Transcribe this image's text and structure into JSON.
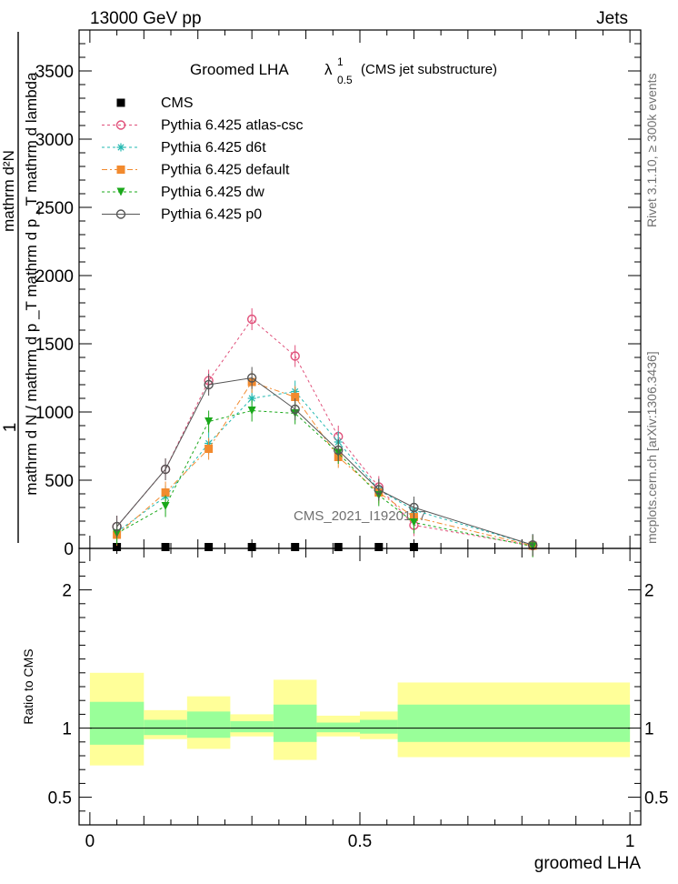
{
  "header": {
    "energy_label": "13000 GeV pp",
    "category_label": "Jets",
    "title": "Groomed LHA",
    "title_subscript": "0.5",
    "title_superscript": "1",
    "title_note": "(CMS jet substructure)",
    "rivet_label": "Rivet 3.1.10, ≥ 300k events",
    "mcplots_label": "mcplots.cern.ch [arXiv:1306.3436]",
    "watermark": "CMS_2021_I1920187"
  },
  "chart_data": [
    {
      "type": "line",
      "panel": "main",
      "xlabel": "groomed LHA",
      "ylabel_num": "1",
      "ylabel_den": "mathrm d N / mathrm d p _T mathrm d p _T mathrm d lambda",
      "ylabel_axis": "mathrm d²N",
      "xlim": [
        -0.02,
        1.02
      ],
      "ylim": [
        0,
        3800
      ],
      "yticks": [
        0,
        500,
        1000,
        1500,
        2000,
        2500,
        3000,
        3500
      ],
      "xticks": [
        0,
        0.5,
        1
      ],
      "legend_position": "top-left",
      "x": [
        0.05,
        0.14,
        0.22,
        0.3,
        0.38,
        0.46,
        0.535,
        0.6,
        0.82
      ],
      "series": [
        {
          "name": "CMS",
          "color": "#000000",
          "marker": "square",
          "line": "none",
          "values": [
            10,
            10,
            10,
            10,
            10,
            10,
            10,
            10,
            null
          ]
        },
        {
          "name": "Pythia 6.425 atlas-csc",
          "color": "#e0507a",
          "marker": "open-circle",
          "line": "dashed",
          "values": [
            160,
            580,
            1230,
            1680,
            1410,
            820,
            450,
            170,
            20
          ]
        },
        {
          "name": "Pythia 6.425 d6t",
          "color": "#22b8b0",
          "marker": "star",
          "line": "dashed",
          "values": [
            120,
            380,
            770,
            1100,
            1150,
            780,
            430,
            280,
            25
          ]
        },
        {
          "name": "Pythia 6.425 default",
          "color": "#f28a2e",
          "marker": "filled-square",
          "line": "dashdot",
          "values": [
            100,
            410,
            730,
            1220,
            1110,
            670,
            410,
            230,
            20
          ]
        },
        {
          "name": "Pythia 6.425 dw",
          "color": "#1aa81a",
          "marker": "filled-triangle-down",
          "line": "dashed",
          "values": [
            110,
            310,
            930,
            1010,
            990,
            700,
            390,
            190,
            15
          ]
        },
        {
          "name": "Pythia 6.425 p0",
          "color": "#555555",
          "marker": "open-circle",
          "line": "solid",
          "values": [
            160,
            580,
            1200,
            1250,
            1020,
            720,
            430,
            300,
            25
          ]
        }
      ]
    },
    {
      "type": "area",
      "panel": "ratio",
      "xlabel": "groomed LHA",
      "ylabel": "Ratio to CMS",
      "xlim": [
        -0.02,
        1.02
      ],
      "ylim": [
        0.3,
        2.3
      ],
      "yticks": [
        0.5,
        1,
        2
      ],
      "xticks": [
        0,
        0.5,
        1
      ],
      "bins": [
        {
          "x0": 0.0,
          "x1": 0.1,
          "stat_lo": 0.88,
          "stat_hi": 1.19,
          "tot_lo": 0.73,
          "tot_hi": 1.4
        },
        {
          "x0": 0.1,
          "x1": 0.18,
          "stat_lo": 0.95,
          "stat_hi": 1.06,
          "tot_lo": 0.92,
          "tot_hi": 1.13
        },
        {
          "x0": 0.18,
          "x1": 0.26,
          "stat_lo": 0.93,
          "stat_hi": 1.12,
          "tot_lo": 0.85,
          "tot_hi": 1.23
        },
        {
          "x0": 0.26,
          "x1": 0.34,
          "stat_lo": 0.97,
          "stat_hi": 1.05,
          "tot_lo": 0.94,
          "tot_hi": 1.1
        },
        {
          "x0": 0.34,
          "x1": 0.42,
          "stat_lo": 0.9,
          "stat_hi": 1.17,
          "tot_lo": 0.77,
          "tot_hi": 1.35
        },
        {
          "x0": 0.42,
          "x1": 0.5,
          "stat_lo": 0.97,
          "stat_hi": 1.04,
          "tot_lo": 0.94,
          "tot_hi": 1.09
        },
        {
          "x0": 0.5,
          "x1": 0.57,
          "stat_lo": 0.96,
          "stat_hi": 1.06,
          "tot_lo": 0.92,
          "tot_hi": 1.12
        },
        {
          "x0": 0.57,
          "x1": 1.0,
          "stat_lo": 0.9,
          "stat_hi": 1.17,
          "tot_lo": 0.79,
          "tot_hi": 1.33
        }
      ]
    }
  ]
}
